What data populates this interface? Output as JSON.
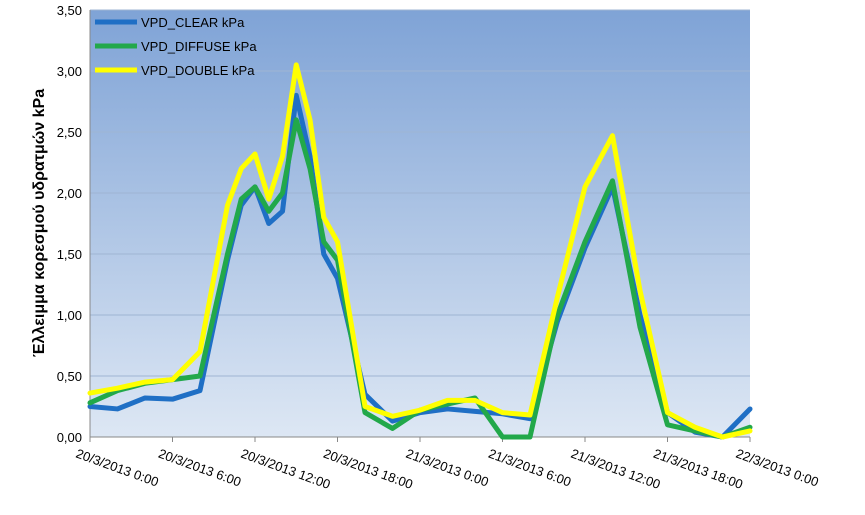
{
  "chart_data": {
    "type": "line",
    "y_label": "Έλλειμμα κορεσμού υδρατμών kPa",
    "x": [
      "20/3/2013 0:00",
      "20/3/2013 2:00",
      "20/3/2013 4:00",
      "20/3/2013 6:00",
      "20/3/2013 8:00",
      "20/3/2013 10:00",
      "20/3/2013 11:00",
      "20/3/2013 12:00",
      "20/3/2013 13:00",
      "20/3/2013 14:00",
      "20/3/2013 15:00",
      "20/3/2013 16:00",
      "20/3/2013 17:00",
      "20/3/2013 18:00",
      "20/3/2013 20:00",
      "20/3/2013 22:00",
      "21/3/2013 0:00",
      "21/3/2013 2:00",
      "21/3/2013 4:00",
      "21/3/2013 6:00",
      "21/3/2013 8:00",
      "21/3/2013 10:00",
      "21/3/2013 12:00",
      "21/3/2013 14:00",
      "21/3/2013 16:00",
      "21/3/2013 18:00",
      "21/3/2013 20:00",
      "21/3/2013 22:00",
      "22/3/2013 0:00"
    ],
    "series": [
      {
        "name": "VPD_CLEAR kPa",
        "color": "#1f6fc5",
        "values": [
          0.25,
          0.23,
          0.32,
          0.31,
          0.38,
          1.45,
          1.9,
          2.05,
          1.75,
          1.85,
          2.8,
          2.3,
          1.5,
          1.3,
          0.35,
          0.13,
          0.2,
          0.23,
          0.21,
          0.19,
          0.15,
          0.95,
          1.55,
          2.05,
          1.0,
          0.2,
          0.04,
          0.0,
          0.23
        ]
      },
      {
        "name": "VPD_DIFFUSE kPa",
        "color": "#22a84a",
        "values": [
          0.28,
          0.38,
          0.44,
          0.47,
          0.5,
          1.5,
          1.95,
          2.05,
          1.85,
          2.0,
          2.6,
          2.2,
          1.6,
          1.45,
          0.2,
          0.07,
          0.22,
          0.27,
          0.32,
          0.0,
          0.0,
          1.0,
          1.6,
          2.1,
          0.9,
          0.1,
          0.05,
          0.0,
          0.08
        ]
      },
      {
        "name": "VPD_DOUBLE kPa",
        "color": "#ffff00",
        "values": [
          0.36,
          0.4,
          0.45,
          0.47,
          0.7,
          1.9,
          2.2,
          2.32,
          1.95,
          2.3,
          3.05,
          2.6,
          1.8,
          1.6,
          0.25,
          0.17,
          0.22,
          0.3,
          0.3,
          0.2,
          0.18,
          1.15,
          2.05,
          2.47,
          1.2,
          0.2,
          0.08,
          0.0,
          0.05
        ]
      }
    ],
    "xlim": [
      "20/3/2013 0:00",
      "22/3/2013 0:00"
    ],
    "xticks": [
      "20/3/2013 0:00",
      "20/3/2013 6:00",
      "20/3/2013 12:00",
      "20/3/2013 18:00",
      "21/3/2013 0:00",
      "21/3/2013 6:00",
      "21/3/2013 12:00",
      "21/3/2013 18:00",
      "22/3/2013 0:00"
    ],
    "ylim": [
      0,
      3.5
    ],
    "yticks": [
      {
        "value": 0,
        "label": "0,00"
      },
      {
        "value": 0.5,
        "label": "0,50"
      },
      {
        "value": 1,
        "label": "1,00"
      },
      {
        "value": 1.5,
        "label": "1,50"
      },
      {
        "value": 2,
        "label": "2,00"
      },
      {
        "value": 2.5,
        "label": "2,50"
      },
      {
        "value": 3,
        "label": "3,00"
      },
      {
        "value": 3.5,
        "label": "3,50"
      }
    ],
    "grid": true,
    "legend": "top-left"
  }
}
